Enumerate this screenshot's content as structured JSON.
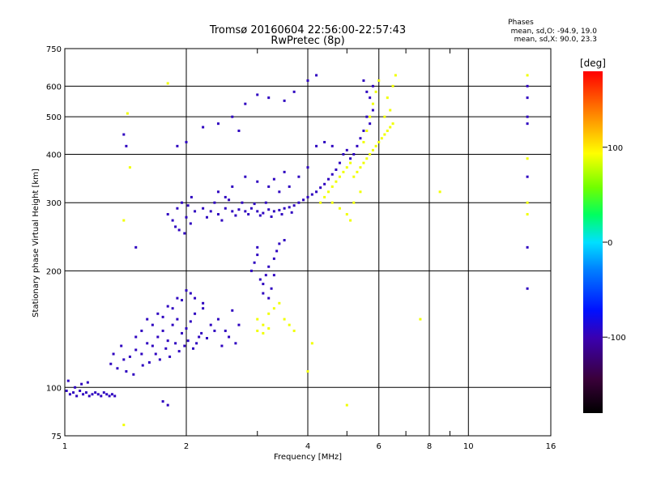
{
  "chart_data": {
    "type": "scatter",
    "title": "Tromsø 20160604 22:56:00-22:57:43",
    "subtitle": "RwPretec (8p)",
    "xlabel": "Frequency [MHz]",
    "ylabel": "Stationary phase Virtual Height [km]",
    "x_scale": "log",
    "y_scale": "log",
    "xlim": [
      1,
      16
    ],
    "ylim": [
      75,
      750
    ],
    "x_ticks": [
      1,
      2,
      4,
      6,
      8,
      10,
      16
    ],
    "x_tick_labels": [
      "1",
      "2",
      "4",
      "6",
      "8",
      "10",
      "16"
    ],
    "y_ticks": [
      75,
      100,
      200,
      300,
      400,
      500,
      600,
      750
    ],
    "y_tick_labels": [
      "75",
      "100",
      "200",
      "300",
      "400",
      "500",
      "600",
      "750"
    ],
    "grid": true,
    "phase_stats": {
      "heading": "Phases",
      "line_o": "mean, sd,O: -94.9, 19.0",
      "line_x": "mean, sd,X:  90.0, 23.3"
    },
    "colorbar": {
      "unit_label": "[deg]",
      "range": [
        -180,
        180
      ],
      "ticks": [
        100,
        0,
        -100
      ],
      "tick_labels": [
        "100",
        "0",
        "-100"
      ]
    },
    "series": [
      {
        "color_phase": -95,
        "points": [
          [
            1.01,
            98
          ],
          [
            1.03,
            96
          ],
          [
            1.05,
            97
          ],
          [
            1.07,
            95
          ],
          [
            1.09,
            98
          ],
          [
            1.11,
            96
          ],
          [
            1.13,
            97
          ],
          [
            1.15,
            95
          ],
          [
            1.17,
            96
          ],
          [
            1.19,
            97
          ],
          [
            1.21,
            96
          ],
          [
            1.23,
            95
          ],
          [
            1.25,
            97
          ],
          [
            1.27,
            96
          ],
          [
            1.29,
            95
          ],
          [
            1.31,
            96
          ],
          [
            1.33,
            95
          ],
          [
            1.06,
            100
          ],
          [
            1.1,
            102
          ],
          [
            1.14,
            103
          ],
          [
            1.02,
            104
          ],
          [
            1.3,
            115
          ],
          [
            1.35,
            112
          ],
          [
            1.4,
            118
          ],
          [
            1.45,
            120
          ],
          [
            1.5,
            125
          ],
          [
            1.55,
            122
          ],
          [
            1.6,
            130
          ],
          [
            1.65,
            128
          ],
          [
            1.7,
            135
          ],
          [
            1.75,
            140
          ],
          [
            1.8,
            132
          ],
          [
            1.85,
            145
          ],
          [
            1.9,
            150
          ],
          [
            1.95,
            138
          ],
          [
            2.0,
            142
          ],
          [
            2.05,
            148
          ],
          [
            2.1,
            155
          ],
          [
            2.15,
            135
          ],
          [
            2.2,
            160
          ],
          [
            2.3,
            145
          ],
          [
            2.4,
            150
          ],
          [
            2.5,
            140
          ],
          [
            2.6,
            158
          ],
          [
            2.7,
            145
          ],
          [
            1.42,
            110
          ],
          [
            1.48,
            108
          ],
          [
            1.56,
            114
          ],
          [
            1.62,
            116
          ],
          [
            1.68,
            122
          ],
          [
            1.72,
            118
          ],
          [
            1.78,
            126
          ],
          [
            1.82,
            120
          ],
          [
            1.88,
            130
          ],
          [
            1.92,
            124
          ],
          [
            1.98,
            128
          ],
          [
            2.02,
            132
          ],
          [
            2.08,
            126
          ],
          [
            2.12,
            130
          ],
          [
            2.18,
            138
          ],
          [
            2.25,
            134
          ],
          [
            2.35,
            140
          ],
          [
            2.45,
            128
          ],
          [
            2.55,
            135
          ],
          [
            2.65,
            130
          ],
          [
            1.6,
            150
          ],
          [
            1.7,
            155
          ],
          [
            1.8,
            162
          ],
          [
            1.9,
            170
          ],
          [
            2.0,
            178
          ],
          [
            2.1,
            170
          ],
          [
            2.2,
            165
          ],
          [
            1.55,
            140
          ],
          [
            1.65,
            145
          ],
          [
            1.75,
            152
          ],
          [
            1.85,
            160
          ],
          [
            1.95,
            168
          ],
          [
            2.05,
            175
          ],
          [
            1.5,
            135
          ],
          [
            1.38,
            128
          ],
          [
            1.32,
            122
          ],
          [
            1.8,
            280
          ],
          [
            1.85,
            270
          ],
          [
            1.9,
            290
          ],
          [
            1.95,
            300
          ],
          [
            2.0,
            275
          ],
          [
            2.05,
            265
          ],
          [
            2.1,
            285
          ],
          [
            1.88,
            260
          ],
          [
            1.92,
            255
          ],
          [
            1.98,
            250
          ],
          [
            2.02,
            295
          ],
          [
            2.06,
            310
          ],
          [
            2.2,
            290
          ],
          [
            2.3,
            285
          ],
          [
            2.4,
            280
          ],
          [
            2.5,
            290
          ],
          [
            2.6,
            285
          ],
          [
            2.7,
            288
          ],
          [
            2.8,
            285
          ],
          [
            2.9,
            290
          ],
          [
            3.0,
            285
          ],
          [
            3.1,
            282
          ],
          [
            3.2,
            288
          ],
          [
            3.3,
            285
          ],
          [
            3.4,
            287
          ],
          [
            3.5,
            290
          ],
          [
            3.6,
            292
          ],
          [
            3.7,
            295
          ],
          [
            3.8,
            300
          ],
          [
            3.9,
            305
          ],
          [
            4.0,
            310
          ],
          [
            4.1,
            315
          ],
          [
            4.2,
            320
          ],
          [
            4.3,
            328
          ],
          [
            4.4,
            335
          ],
          [
            4.5,
            345
          ],
          [
            4.6,
            355
          ],
          [
            4.7,
            365
          ],
          [
            4.8,
            380
          ],
          [
            2.25,
            275
          ],
          [
            2.45,
            270
          ],
          [
            2.65,
            278
          ],
          [
            2.85,
            280
          ],
          [
            3.05,
            278
          ],
          [
            3.25,
            276
          ],
          [
            3.45,
            280
          ],
          [
            3.65,
            283
          ],
          [
            2.35,
            300
          ],
          [
            2.55,
            305
          ],
          [
            2.75,
            300
          ],
          [
            2.95,
            298
          ],
          [
            3.15,
            300
          ],
          [
            2.9,
            200
          ],
          [
            2.95,
            210
          ],
          [
            3.0,
            220
          ],
          [
            3.05,
            190
          ],
          [
            3.1,
            185
          ],
          [
            3.15,
            195
          ],
          [
            3.2,
            205
          ],
          [
            3.25,
            180
          ],
          [
            3.3,
            215
          ],
          [
            3.35,
            225
          ],
          [
            3.4,
            235
          ],
          [
            3.5,
            240
          ],
          [
            3.1,
            175
          ],
          [
            3.2,
            170
          ],
          [
            3.0,
            230
          ],
          [
            3.3,
            195
          ],
          [
            5.5,
            620
          ],
          [
            5.6,
            580
          ],
          [
            5.7,
            560
          ],
          [
            5.8,
            520
          ],
          [
            5.6,
            500
          ],
          [
            5.7,
            480
          ],
          [
            5.5,
            460
          ],
          [
            5.4,
            440
          ],
          [
            5.8,
            600
          ],
          [
            5.3,
            420
          ],
          [
            5.2,
            400
          ],
          [
            5.1,
            390
          ],
          [
            4.9,
            400
          ],
          [
            5.0,
            410
          ],
          [
            4.6,
            420
          ],
          [
            4.4,
            430
          ],
          [
            4.2,
            420
          ],
          [
            2.8,
            350
          ],
          [
            3.0,
            340
          ],
          [
            3.2,
            330
          ],
          [
            3.4,
            320
          ],
          [
            3.6,
            330
          ],
          [
            3.8,
            350
          ],
          [
            4.0,
            370
          ],
          [
            3.5,
            360
          ],
          [
            3.3,
            345
          ],
          [
            2.6,
            330
          ],
          [
            2.4,
            320
          ],
          [
            2.5,
            310
          ],
          [
            3.7,
            580
          ],
          [
            4.0,
            620
          ],
          [
            4.2,
            640
          ],
          [
            3.5,
            550
          ],
          [
            3.2,
            560
          ],
          [
            3.0,
            570
          ],
          [
            2.8,
            540
          ],
          [
            2.6,
            500
          ],
          [
            2.4,
            480
          ],
          [
            2.7,
            460
          ],
          [
            2.2,
            470
          ],
          [
            2.0,
            430
          ],
          [
            1.9,
            420
          ],
          [
            1.4,
            450
          ],
          [
            1.42,
            420
          ],
          [
            1.5,
            230
          ],
          [
            1.8,
            90
          ],
          [
            1.75,
            92
          ],
          [
            14.0,
            600
          ],
          [
            14.0,
            560
          ],
          [
            14.0,
            500
          ],
          [
            14.0,
            480
          ],
          [
            14.0,
            350
          ],
          [
            14.0,
            230
          ],
          [
            14.0,
            180
          ]
        ]
      },
      {
        "color_phase": 90,
        "points": [
          [
            4.3,
            300
          ],
          [
            4.4,
            310
          ],
          [
            4.5,
            320
          ],
          [
            4.6,
            330
          ],
          [
            4.7,
            340
          ],
          [
            4.8,
            350
          ],
          [
            4.9,
            360
          ],
          [
            5.0,
            370
          ],
          [
            5.1,
            380
          ],
          [
            5.2,
            350
          ],
          [
            5.3,
            360
          ],
          [
            5.4,
            370
          ],
          [
            5.5,
            380
          ],
          [
            5.6,
            390
          ],
          [
            5.7,
            400
          ],
          [
            5.8,
            410
          ],
          [
            5.9,
            420
          ],
          [
            6.0,
            430
          ],
          [
            6.1,
            440
          ],
          [
            6.2,
            450
          ],
          [
            6.3,
            460
          ],
          [
            6.4,
            470
          ],
          [
            6.5,
            480
          ],
          [
            5.5,
            430
          ],
          [
            5.6,
            460
          ],
          [
            5.7,
            500
          ],
          [
            5.8,
            540
          ],
          [
            5.9,
            580
          ],
          [
            6.0,
            620
          ],
          [
            6.3,
            560
          ],
          [
            6.4,
            520
          ],
          [
            6.5,
            600
          ],
          [
            6.6,
            640
          ],
          [
            6.2,
            500
          ],
          [
            5.2,
            300
          ],
          [
            5.4,
            320
          ],
          [
            4.8,
            290
          ],
          [
            5.0,
            280
          ],
          [
            5.1,
            270
          ],
          [
            4.6,
            300
          ],
          [
            3.0,
            150
          ],
          [
            3.1,
            145
          ],
          [
            3.2,
            155
          ],
          [
            3.3,
            160
          ],
          [
            3.4,
            165
          ],
          [
            3.5,
            150
          ],
          [
            3.6,
            145
          ],
          [
            3.0,
            140
          ],
          [
            3.1,
            138
          ],
          [
            3.2,
            142
          ],
          [
            3.7,
            140
          ],
          [
            1.43,
            510
          ],
          [
            1.45,
            370
          ],
          [
            1.4,
            270
          ],
          [
            5.0,
            90
          ],
          [
            7.6,
            150
          ],
          [
            8.5,
            320
          ],
          [
            4.0,
            110
          ],
          [
            4.1,
            130
          ],
          [
            14.0,
            390
          ],
          [
            14.0,
            300
          ],
          [
            14.0,
            280
          ],
          [
            14.0,
            640
          ],
          [
            1.8,
            610
          ],
          [
            1.4,
            80
          ]
        ]
      }
    ]
  }
}
